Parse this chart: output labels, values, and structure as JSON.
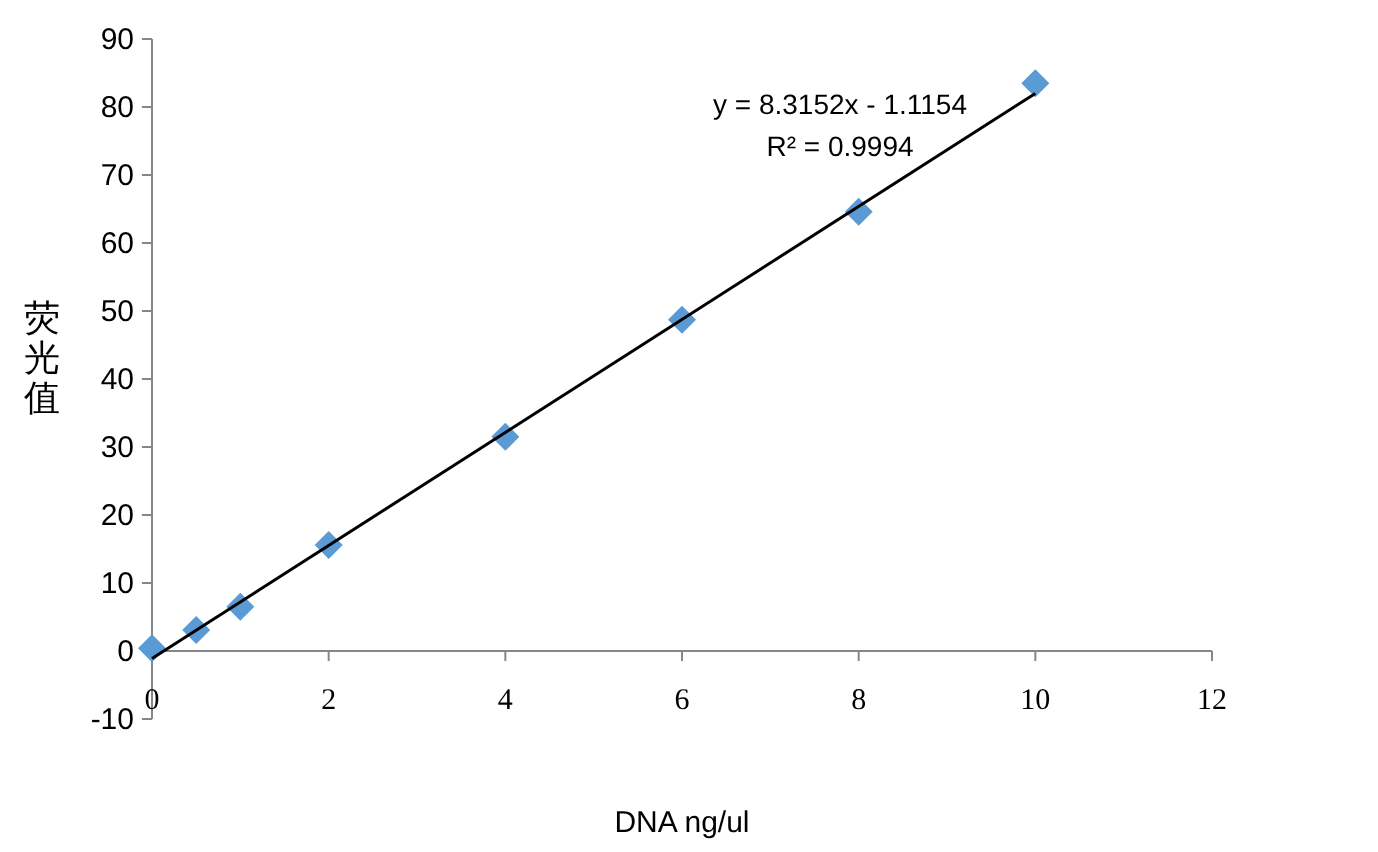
{
  "chart_data": {
    "type": "scatter",
    "xlabel": "DNA ng/ul",
    "ylabel": "荧光值",
    "xlim": [
      0,
      12
    ],
    "xticks": [
      0,
      2,
      4,
      6,
      8,
      10,
      12
    ],
    "ylim": [
      -10,
      90
    ],
    "yticks": [
      -10,
      0,
      10,
      20,
      30,
      40,
      50,
      60,
      70,
      80,
      90
    ],
    "grid": false,
    "marker": "diamond",
    "series": [
      {
        "color": "#5b9bd5",
        "x": [
          0,
          0.5,
          1,
          2,
          4,
          6,
          8,
          10
        ],
        "values": [
          0.4,
          3.1,
          6.5,
          15.6,
          31.5,
          48.7,
          64.6,
          83.5
        ]
      },
      {
        "type": "line",
        "color": "#000000",
        "x": [
          0,
          10
        ],
        "values": [
          -1.1,
          82.0
        ],
        "line_style": "solid",
        "marker": "none"
      }
    ],
    "annotations": [
      "y = 8.3152x - 1.1154",
      "R² = 0.9994"
    ]
  }
}
